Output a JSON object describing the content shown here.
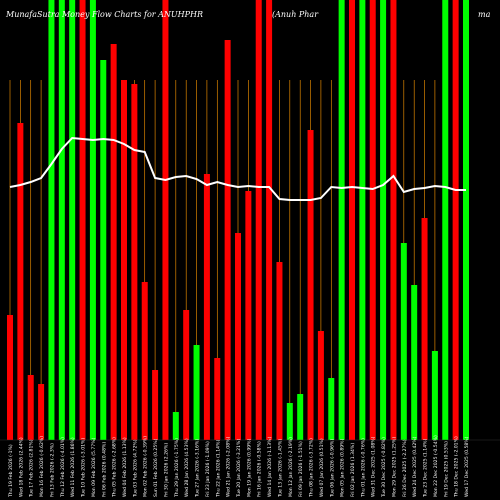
{
  "chart_data": {
    "type": "bar",
    "title": "MunafaSutra Money Flow Charts for ANUHPHR",
    "subtitle": "(Anuh Phar",
    "corner_text": "ma",
    "categories": [
      "Thu 19 Feb 2026 (-1%)",
      "Wed 18 Feb 2026 (2.44%)",
      "Tue 17 Feb 2026 (2.81%)",
      "Mon 16 Feb 2026 (-0.62%)",
      "Fri 13 Feb 2026 (-2.3%)",
      "Thu 12 Feb 2026 (-4.01%)",
      "Wed 11 Feb 2026 (1.86%)",
      "Tue 10 Feb 2026 (-3.01%)",
      "Mon 09 Feb 2026 (5.77%)",
      "Fri 06 Feb 2026 (0.48%)",
      "Thu 05 Feb 2026 (-2.68%)",
      "Wed 04 Feb 2026 (1.13%)",
      "Tue 03 Feb 2026 (4.72%)",
      "Mon 02 Feb 2026 (-0.39%)",
      "Sun 01 Feb 2026 (0.25%)",
      "Fri 30 Jan 2026 (2.26%)",
      "Thu 29 Jan 2026 (-1.75%)",
      "Wed 28 Jan 2026 (4.53%)",
      "Tue 27 Jan 2026 (-3.16%)",
      "Fri 23 Jan 2026 (-1.09%)",
      "Thu 22 Jan 2026 (1.14%)",
      "Wed 21 Jan 2026 (-2.08%)",
      "Tue 20 Jan 2026 (-3.21%)",
      "Mon 19 Jan 2026 (0.99%)",
      "Fri 16 Jan 2026 (-0.58%)",
      "Wed 14 Jan 2026 (-1.13%)",
      "Tue 13 Jan 2026 (-1.45%)",
      "Mon 12 Jan 2026 (-2.19%)",
      "Fri 09 Jan 2026 (-1.51%)",
      "Thu 08 Jan 2026 (-3.72%)",
      "Wed 07 Jan 2026 (0.51%)",
      "Tue 06 Jan 2026 (-0.96%)",
      "Mon 05 Jan 2026 (0.89%)",
      "Fri 02 Jan 2026 (1.34%)",
      "Thu 01 Jan 2026 (-0.76%)",
      "Wed 31 Dec 2025 (1.08%)",
      "Tue 30 Dec 2025 (-0.82%)",
      "Mon 29 Dec 2025 (1.25%)",
      "Fri 26 Dec 2025 (-2.27%)",
      "Wed 24 Dec 2025 (0.42%)",
      "Tue 23 Dec 2025 (1.14%)",
      "Mon 22 Dec 2025 (-0.54%)",
      "Fri 19 Dec 2025 (0.53%)",
      "Thu 18 Dec 2025 (-2.01%)",
      "Wed 17 Dec 2025 (0.58%)"
    ],
    "values": [
      125,
      317,
      65,
      56,
      440,
      440,
      440,
      440,
      440,
      380,
      396,
      360,
      356,
      158,
      70,
      440,
      28,
      130,
      95,
      266,
      82,
      400,
      207,
      249,
      440,
      440,
      178,
      37,
      46,
      310,
      109,
      62,
      440,
      440,
      440,
      440,
      440,
      440,
      197,
      155,
      222,
      89,
      440,
      440,
      440
    ],
    "directions": [
      "down",
      "down",
      "down",
      "down",
      "up",
      "up",
      "up",
      "down",
      "up",
      "up",
      "down",
      "down",
      "down",
      "down",
      "down",
      "down",
      "up",
      "down",
      "up",
      "down",
      "down",
      "down",
      "down",
      "down",
      "down",
      "down",
      "down",
      "up",
      "up",
      "down",
      "down",
      "up",
      "up",
      "down",
      "up",
      "down",
      "up",
      "down",
      "up",
      "up",
      "down",
      "up",
      "up",
      "down",
      "up"
    ],
    "moving_average": [
      253,
      255,
      258,
      262,
      276,
      291,
      302,
      301,
      300,
      301,
      300,
      296,
      290,
      288,
      262,
      260,
      263,
      264,
      261,
      255,
      258,
      255,
      253,
      254,
      253,
      253,
      241,
      240,
      240,
      240,
      242,
      253,
      252,
      253,
      252,
      251,
      255,
      264,
      248,
      251,
      252,
      254,
      253,
      250,
      250
    ],
    "ylim": [
      0,
      440
    ],
    "colors": {
      "up": "#00ff00",
      "down": "#ff0000",
      "line": "#ffffff",
      "grid": "#ff9900",
      "background": "#000000"
    }
  }
}
